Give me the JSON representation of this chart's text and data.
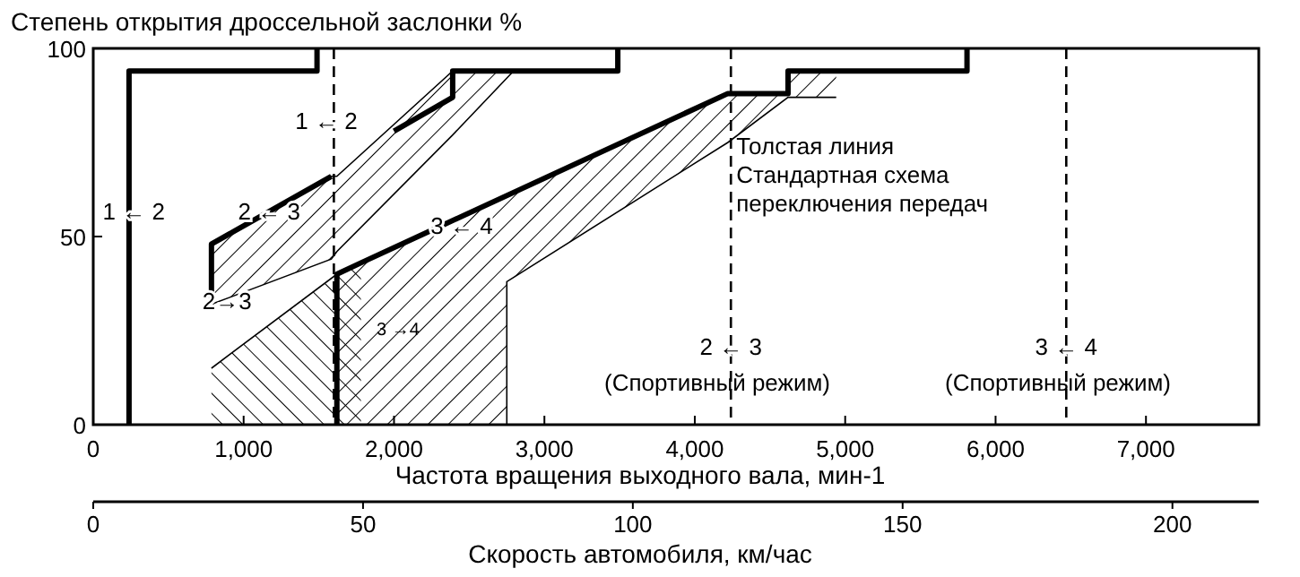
{
  "chart_data": {
    "type": "line",
    "ylabel": "Степень открытия дроссельной заслонки  %",
    "xlabel": "Частота вращения выходного вала, мин-1",
    "x2label": "Скорость автомобиля, км/час",
    "xlim": [
      0,
      7750
    ],
    "xticks": [
      0,
      {
        "value": 1000,
        "label": "1,000"
      },
      {
        "value": 2000,
        "label": "2,000"
      },
      {
        "value": 3000,
        "label": "3,000"
      },
      {
        "value": 4000,
        "label": "4,000"
      },
      {
        "value": 5000,
        "label": "5,000"
      },
      {
        "value": 6000,
        "label": "6,000"
      },
      {
        "value": 7000,
        "label": "7,000"
      }
    ],
    "ylim": [
      0,
      100
    ],
    "yticks": [
      0,
      50,
      100
    ],
    "x2lim": [
      0,
      216
    ],
    "x2ticks": [
      0,
      50,
      100,
      150,
      200
    ],
    "series": [
      {
        "color": "#000000",
        "x": [
          786,
          1583,
          1620,
          2390,
          2795
        ],
        "values": [
          48,
          66,
          66,
          94,
          94
        ],
        "upper": [
          48,
          66,
          66,
          94,
          94
        ],
        "lower": [
          32,
          44,
          46,
          77,
          94
        ]
      },
      {
        "color": "#000000",
        "x": [
          786,
          1620,
          1780
        ],
        "values": [
          15,
          40,
          43
        ],
        "upper": [
          15,
          40,
          43
        ],
        "lower": [
          0,
          0,
          0
        ]
      },
      {
        "color": "#000000",
        "x": [
          1620,
          1780,
          2750,
          2750,
          4220,
          4620,
          4620,
          4940
        ],
        "values": [
          0,
          0,
          0,
          38,
          75,
          87,
          87,
          87
        ],
        "upper": [
          40,
          43,
          61,
          61,
          88,
          88,
          94,
          94
        ],
        "lower": [
          0,
          0,
          0,
          38,
          75,
          87,
          87,
          87
        ]
      },
      {
        "color": "#000000",
        "x": [
          238,
          238,
          1488,
          1488
        ],
        "values": [
          0,
          94,
          94,
          100
        ]
      },
      {
        "color": "#000000",
        "x": [
          786,
          786,
          1583
        ],
        "values": [
          32,
          48,
          66
        ]
      },
      {
        "color": "#000000",
        "x": [
          2000,
          2390,
          2390,
          3488,
          3488
        ],
        "values": [
          78,
          87,
          94,
          94,
          100
        ]
      },
      {
        "color": "#000000",
        "x": [
          1620,
          1620,
          1780,
          4220,
          4620,
          4620,
          5810,
          5810
        ],
        "values": [
          0,
          40,
          43,
          88,
          88,
          94,
          94,
          100
        ]
      }
    ],
    "ref_lines": [
      {
        "axis": "x",
        "value": 1600,
        "line_style": "dashed",
        "color": "#000000"
      },
      {
        "axis": "x",
        "value": 4240,
        "line_style": "dashed",
        "color": "#000000"
      },
      {
        "axis": "x",
        "value": 6470,
        "line_style": "dashed",
        "color": "#000000"
      }
    ],
    "annotations": [
      {
        "text": "1 ← 2",
        "x": 270,
        "y": 57
      },
      {
        "text": "1 ← 2",
        "x": 1550,
        "y": 81
      },
      {
        "text": "2 ← 3",
        "x": 1170,
        "y": 57
      },
      {
        "text": "3 ← 4",
        "x": 2450,
        "y": 53
      },
      {
        "text": "2→3",
        "x": 890,
        "y": 33
      },
      "3 →4",
      {
        "text": "2 ← 3",
        "x": 4240,
        "y": 21
      },
      "(Спортивный режим)",
      {
        "text": "3 ← 4",
        "x": 6470,
        "y": 21
      },
      "(Спортивный режим)",
      "Толстая линия\nСтандартная схема\nпереключения передач"
    ]
  }
}
